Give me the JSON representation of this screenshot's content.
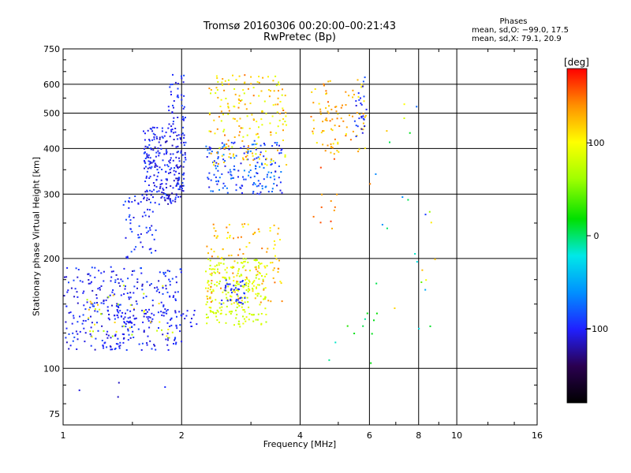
{
  "title": "Tromsø 20160306 00:20:00–00:21:43",
  "subtitle": "RwPretec (Bp)",
  "phase_box": {
    "title": "Phases",
    "stat_o": "mean, sd,O: −99.0, 17.5",
    "stat_x": "mean, sd,X:  79.1, 20.9"
  },
  "colorbar": {
    "label": "[deg]",
    "ticks": [
      {
        "value": 100,
        "label": "100"
      },
      {
        "value": 0,
        "label": "0"
      },
      {
        "value": -100,
        "label": "−100"
      }
    ],
    "range": [
      -180,
      180
    ]
  },
  "chart_data": {
    "type": "scatter",
    "xlabel": "Frequency [MHz]",
    "ylabel": "Stationary phase Virtual Height [km]",
    "xscale": "log",
    "yscale": "log",
    "xlim": [
      1,
      16
    ],
    "ylim": [
      70,
      750
    ],
    "xticks": [
      {
        "value": 1,
        "label": "1"
      },
      {
        "value": 2,
        "label": "2"
      },
      {
        "value": 4,
        "label": "4"
      },
      {
        "value": 6,
        "label": "6"
      },
      {
        "value": 8,
        "label": "8"
      },
      {
        "value": 10,
        "label": "10"
      },
      {
        "value": 16,
        "label": "16"
      }
    ],
    "yticks": [
      {
        "value": 75,
        "label": "75"
      },
      {
        "value": 100,
        "label": "100"
      },
      {
        "value": 200,
        "label": "200"
      },
      {
        "value": 300,
        "label": "300"
      },
      {
        "value": 400,
        "label": "400"
      },
      {
        "value": 500,
        "label": "500"
      },
      {
        "value": 600,
        "label": "600"
      },
      {
        "value": 750,
        "label": "750"
      }
    ],
    "grid": true,
    "clusters": [
      {
        "name": "low-blue",
        "x": [
          1.0,
          2.0
        ],
        "y": [
          112,
          190
        ],
        "phase": [
          -115,
          -85
        ],
        "n": 320
      },
      {
        "name": "low-yellow",
        "x": [
          1.15,
          1.9
        ],
        "y": [
          120,
          170
        ],
        "phase": [
          60,
          130
        ],
        "n": 40
      },
      {
        "name": "blue-trace",
        "x": [
          1.3,
          2.2
        ],
        "y": [
          130,
          145
        ],
        "phase": [
          -110,
          -95
        ],
        "n": 60
      },
      {
        "name": "F1-low-green",
        "x": [
          2.3,
          3.3
        ],
        "y": [
          130,
          200
        ],
        "phase": [
          70,
          95
        ],
        "n": 230
      },
      {
        "name": "F1-low-yellow",
        "x": [
          2.3,
          3.6
        ],
        "y": [
          150,
          250
        ],
        "phase": [
          100,
          150
        ],
        "n": 120
      },
      {
        "name": "F1-low-blue",
        "x": [
          2.5,
          2.9
        ],
        "y": [
          150,
          175
        ],
        "phase": [
          -110,
          -85
        ],
        "n": 40
      },
      {
        "name": "F2-blue-mid",
        "x": [
          1.6,
          2.05
        ],
        "y": [
          280,
          460
        ],
        "phase": [
          -120,
          -85
        ],
        "n": 260
      },
      {
        "name": "F2-blue-tail",
        "x": [
          1.4,
          1.75
        ],
        "y": [
          200,
          300
        ],
        "phase": [
          -110,
          -80
        ],
        "n": 60
      },
      {
        "name": "F2-blue-high",
        "x": [
          1.85,
          2.05
        ],
        "y": [
          460,
          640
        ],
        "phase": [
          -110,
          -85
        ],
        "n": 40
      },
      {
        "name": "F2-blue-right",
        "x": [
          2.3,
          3.6
        ],
        "y": [
          300,
          420
        ],
        "phase": [
          -110,
          -60
        ],
        "n": 170
      },
      {
        "name": "F2-yellow-top",
        "x": [
          2.35,
          3.7
        ],
        "y": [
          360,
          640
        ],
        "phase": [
          80,
          150
        ],
        "n": 190
      },
      {
        "name": "F2-yellow-high",
        "x": [
          4.2,
          5.9
        ],
        "y": [
          380,
          620
        ],
        "phase": [
          100,
          150
        ],
        "n": 90
      },
      {
        "name": "F2-blue-right-hi",
        "x": [
          5.5,
          5.9
        ],
        "y": [
          430,
          640
        ],
        "phase": [
          -110,
          -80
        ],
        "n": 25
      },
      {
        "name": "red-scatter",
        "x": [
          4.3,
          5.0
        ],
        "y": [
          230,
          620
        ],
        "phase": [
          130,
          165
        ],
        "n": 18
      },
      {
        "name": "sparse-high",
        "x": [
          6.0,
          9.0
        ],
        "y": [
          120,
          560
        ],
        "phase": [
          -110,
          160
        ],
        "n": 25
      },
      {
        "name": "cyan-low",
        "x": [
          4.5,
          6.5
        ],
        "y": [
          100,
          175
        ],
        "phase": [
          -20,
          30
        ],
        "n": 12
      },
      {
        "name": "outliers",
        "x": [
          1.05,
          2.0
        ],
        "y": [
          78,
          98
        ],
        "phase": [
          -120,
          -90
        ],
        "n": 4
      }
    ]
  }
}
